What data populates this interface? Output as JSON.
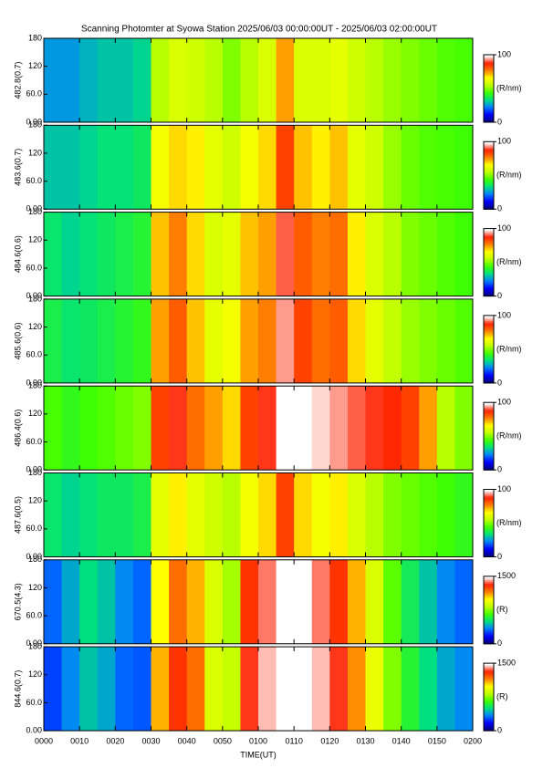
{
  "chart_data": {
    "type": "keogram",
    "title": "Scanning Photomter at Syowa Station 2025/06/03 00:00:00UT - 2025/06/03 02:00:00UT",
    "xlabel": "TIME(UT)",
    "xlim": [
      0,
      120
    ],
    "xticks": [
      {
        "value": 0,
        "label": "0000"
      },
      {
        "value": 10,
        "label": "0010"
      },
      {
        "value": 20,
        "label": "0020"
      },
      {
        "value": 30,
        "label": "0030"
      },
      {
        "value": 40,
        "label": "0040"
      },
      {
        "value": 50,
        "label": "0050"
      },
      {
        "value": 60,
        "label": "0100"
      },
      {
        "value": 70,
        "label": "0110"
      },
      {
        "value": 80,
        "label": "0120"
      },
      {
        "value": 90,
        "label": "0130"
      },
      {
        "value": 100,
        "label": "0140"
      },
      {
        "value": 110,
        "label": "0150"
      },
      {
        "value": 120,
        "label": "0200"
      }
    ],
    "ylim": [
      0,
      180
    ],
    "yticks": [
      {
        "value": 0,
        "label": "0.00"
      },
      {
        "value": 60,
        "label": "60.0"
      },
      120,
      180
    ],
    "colormap": [
      "#00007f",
      "#0000ff",
      "#0080ff",
      "#00e080",
      "#40ff00",
      "#c0ff00",
      "#ffff00",
      "#ff8000",
      "#ff2000",
      "#ffffff"
    ],
    "panels": [
      {
        "ylabel": "482.8(0.7)",
        "unit": "(R/nm)",
        "clim": [
          0,
          100
        ],
        "cticks": [
          0,
          100
        ],
        "values": [
          25,
          25,
          28,
          30,
          30,
          32,
          55,
          60,
          58,
          55,
          50,
          55,
          60,
          75,
          60,
          60,
          62,
          58,
          55,
          52,
          50,
          48,
          46,
          45
        ]
      },
      {
        "ylabel": "483.6(0.7)",
        "unit": "(R/nm)",
        "clim": [
          0,
          100
        ],
        "cticks": [
          0,
          100
        ],
        "values": [
          30,
          30,
          32,
          34,
          34,
          36,
          65,
          70,
          68,
          62,
          58,
          65,
          70,
          85,
          72,
          68,
          72,
          62,
          58,
          52,
          48,
          46,
          45,
          44
        ]
      },
      {
        "ylabel": "484.6(0.6)",
        "unit": "(R/nm)",
        "clim": [
          0,
          100
        ],
        "cticks": [
          0,
          100
        ],
        "values": [
          35,
          32,
          34,
          36,
          38,
          40,
          72,
          78,
          70,
          60,
          62,
          72,
          75,
          92,
          82,
          78,
          80,
          68,
          60,
          55,
          50,
          48,
          46,
          44
        ]
      },
      {
        "ylabel": "485.6(0.6)",
        "unit": "(R/nm)",
        "clim": [
          0,
          100
        ],
        "cticks": [
          0,
          100
        ],
        "values": [
          38,
          35,
          36,
          38,
          40,
          42,
          75,
          82,
          72,
          62,
          65,
          75,
          78,
          95,
          85,
          80,
          82,
          70,
          62,
          56,
          52,
          50,
          48,
          46
        ]
      },
      {
        "ylabel": "486.4(0.6)",
        "unit": "(R/nm)",
        "clim": [
          0,
          100
        ],
        "cticks": [
          0,
          100
        ],
        "values": [
          45,
          42,
          44,
          46,
          48,
          50,
          85,
          90,
          80,
          75,
          70,
          85,
          90,
          100,
          100,
          98,
          95,
          92,
          90,
          88,
          85,
          75,
          55,
          50
        ]
      },
      {
        "ylabel": "487.6(0.5)",
        "unit": "(R/nm)",
        "clim": [
          0,
          100
        ],
        "cticks": [
          0,
          100
        ],
        "values": [
          35,
          32,
          34,
          36,
          36,
          38,
          62,
          68,
          62,
          58,
          55,
          65,
          70,
          85,
          70,
          65,
          68,
          60,
          55,
          50,
          48,
          46,
          44,
          42
        ]
      },
      {
        "ylabel": "670.5(4.3)",
        "unit": "(R)",
        "clim": [
          0,
          1500
        ],
        "cticks": [
          0,
          1500
        ],
        "values": [
          300,
          400,
          500,
          450,
          350,
          300,
          1000,
          1200,
          1100,
          900,
          800,
          1300,
          1400,
          1500,
          1500,
          1400,
          1300,
          1100,
          900,
          700,
          550,
          450,
          350,
          300
        ]
      },
      {
        "ylabel": "844.6(0.7)",
        "unit": "(R)",
        "clim": [
          0,
          1500
        ],
        "cticks": [
          0,
          1500
        ],
        "values": [
          250,
          350,
          450,
          400,
          300,
          280,
          1100,
          1300,
          1200,
          900,
          850,
          1350,
          1450,
          1500,
          1500,
          1450,
          1350,
          1150,
          950,
          750,
          600,
          500,
          400,
          350
        ]
      }
    ]
  }
}
